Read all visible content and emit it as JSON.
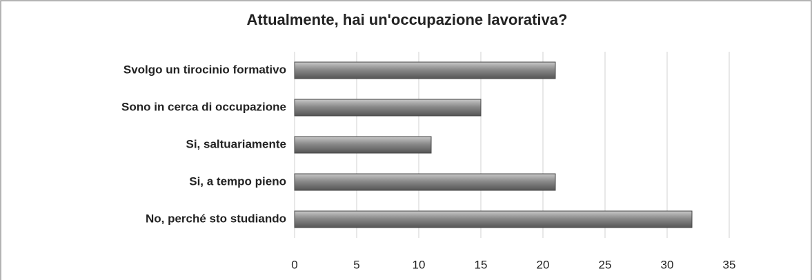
{
  "chart_data": {
    "type": "bar",
    "orientation": "horizontal",
    "title": "Attualmente, hai un'occupazione lavorativa?",
    "categories": [
      "Svolgo un tirocinio formativo",
      "Sono in cerca di occupazione",
      "Si, saltuariamente",
      "Si, a tempo pieno",
      "No, perché sto studiando"
    ],
    "values": [
      21,
      15,
      11,
      21,
      32
    ],
    "color": "#7a7a7a",
    "xlim": [
      0,
      35
    ],
    "xticks": [
      0,
      5,
      10,
      15,
      20,
      25,
      30,
      35
    ],
    "grid": true
  }
}
